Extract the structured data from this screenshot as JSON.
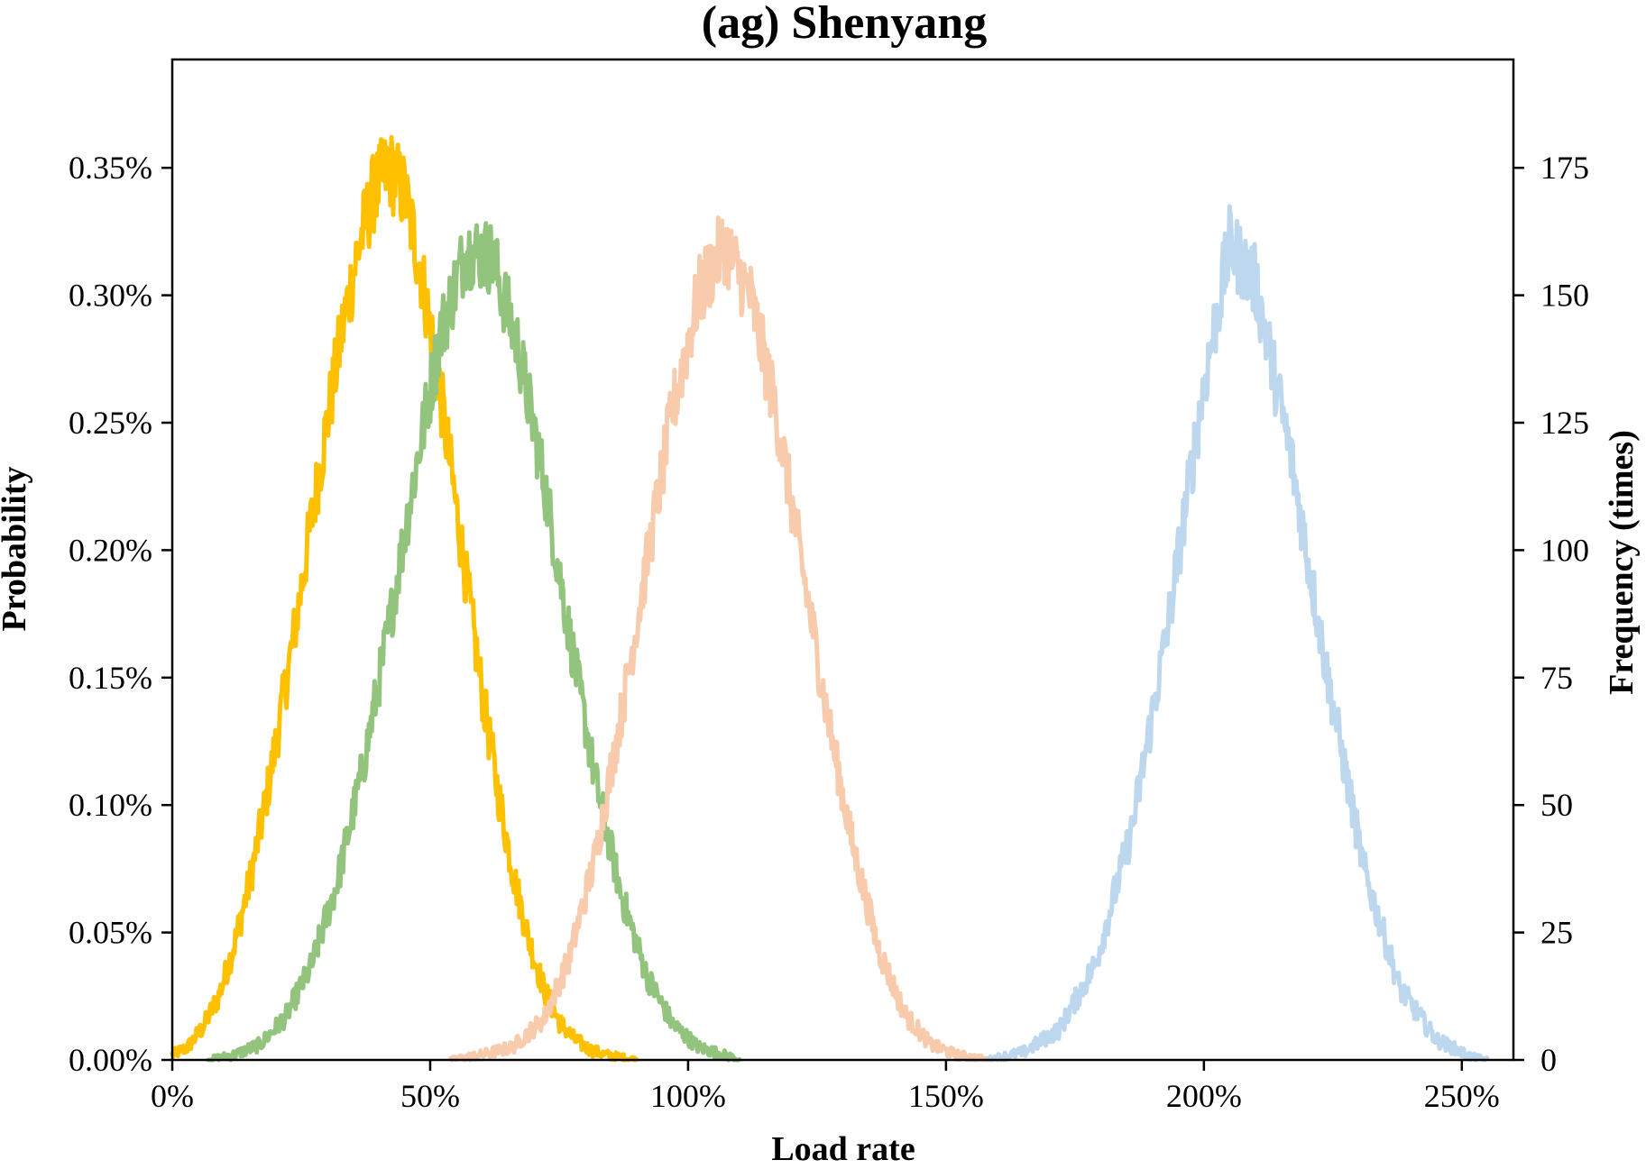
{
  "chart_data": {
    "type": "line",
    "title": "(ag) Shenyang",
    "xlabel": "Load rate",
    "ylabel": "Probability",
    "y2label": "Frequency (times)",
    "xlim": [
      0,
      260
    ],
    "ylim": [
      0,
      0.3925
    ],
    "y2lim": [
      0,
      196.25
    ],
    "grid": false,
    "legend": "none",
    "x_ticks": [
      0,
      50,
      100,
      150,
      200,
      250
    ],
    "x_tick_labels": [
      "0%",
      "50%",
      "100%",
      "150%",
      "200%",
      "250%"
    ],
    "y_ticks": [
      0,
      0.05,
      0.1,
      0.15,
      0.2,
      0.25,
      0.3,
      0.35
    ],
    "y_tick_labels": [
      "0.00%",
      "0.05%",
      "0.10%",
      "0.15%",
      "0.20%",
      "0.25%",
      "0.30%",
      "0.35%"
    ],
    "y2_ticks": [
      0,
      25,
      50,
      75,
      100,
      125,
      150,
      175
    ],
    "y2_tick_labels": [
      "0",
      "25",
      "50",
      "75",
      "100",
      "125",
      "150",
      "175"
    ],
    "series": [
      {
        "color": "#FFC000",
        "x": [
          0,
          3,
          6,
          9,
          12,
          15,
          18,
          21,
          24,
          27,
          30,
          33,
          36,
          39,
          42,
          45,
          48,
          51,
          54,
          57,
          60,
          63,
          66,
          69,
          72,
          75,
          78,
          81,
          84,
          87,
          90
        ],
        "y": [
          0.002,
          0.005,
          0.013,
          0.025,
          0.045,
          0.07,
          0.1,
          0.135,
          0.172,
          0.212,
          0.25,
          0.287,
          0.318,
          0.34,
          0.35,
          0.34,
          0.312,
          0.275,
          0.232,
          0.188,
          0.145,
          0.107,
          0.074,
          0.048,
          0.028,
          0.015,
          0.008,
          0.004,
          0.002,
          0.001,
          0.0
        ]
      },
      {
        "color": "#93C47D",
        "x": [
          7,
          12,
          17,
          22,
          27,
          32,
          37,
          42,
          47,
          52,
          57,
          62,
          67,
          72,
          77,
          82,
          87,
          92,
          97,
          102,
          107,
          110
        ],
        "y": [
          0.0,
          0.002,
          0.006,
          0.017,
          0.037,
          0.07,
          0.115,
          0.17,
          0.23,
          0.285,
          0.318,
          0.315,
          0.28,
          0.228,
          0.167,
          0.11,
          0.065,
          0.033,
          0.014,
          0.005,
          0.002,
          0.0
        ]
      },
      {
        "color": "#F8CBAD",
        "x": [
          54,
          60,
          66,
          72,
          77,
          82,
          87,
          92,
          97,
          102,
          107,
          112,
          117,
          122,
          127,
          132,
          137,
          142,
          147,
          152,
          158
        ],
        "y": [
          0.0,
          0.002,
          0.005,
          0.016,
          0.04,
          0.08,
          0.135,
          0.195,
          0.255,
          0.3,
          0.32,
          0.3,
          0.255,
          0.195,
          0.135,
          0.083,
          0.043,
          0.018,
          0.006,
          0.002,
          0.0
        ]
      },
      {
        "color": "#BDD7EE",
        "x": [
          158,
          165,
          172,
          179,
          186,
          193,
          200,
          205,
          210,
          217,
          224,
          231,
          238,
          245,
          252,
          255
        ],
        "y": [
          0.0,
          0.003,
          0.012,
          0.038,
          0.09,
          0.17,
          0.265,
          0.32,
          0.305,
          0.235,
          0.15,
          0.075,
          0.028,
          0.008,
          0.001,
          0.0
        ]
      }
    ]
  }
}
